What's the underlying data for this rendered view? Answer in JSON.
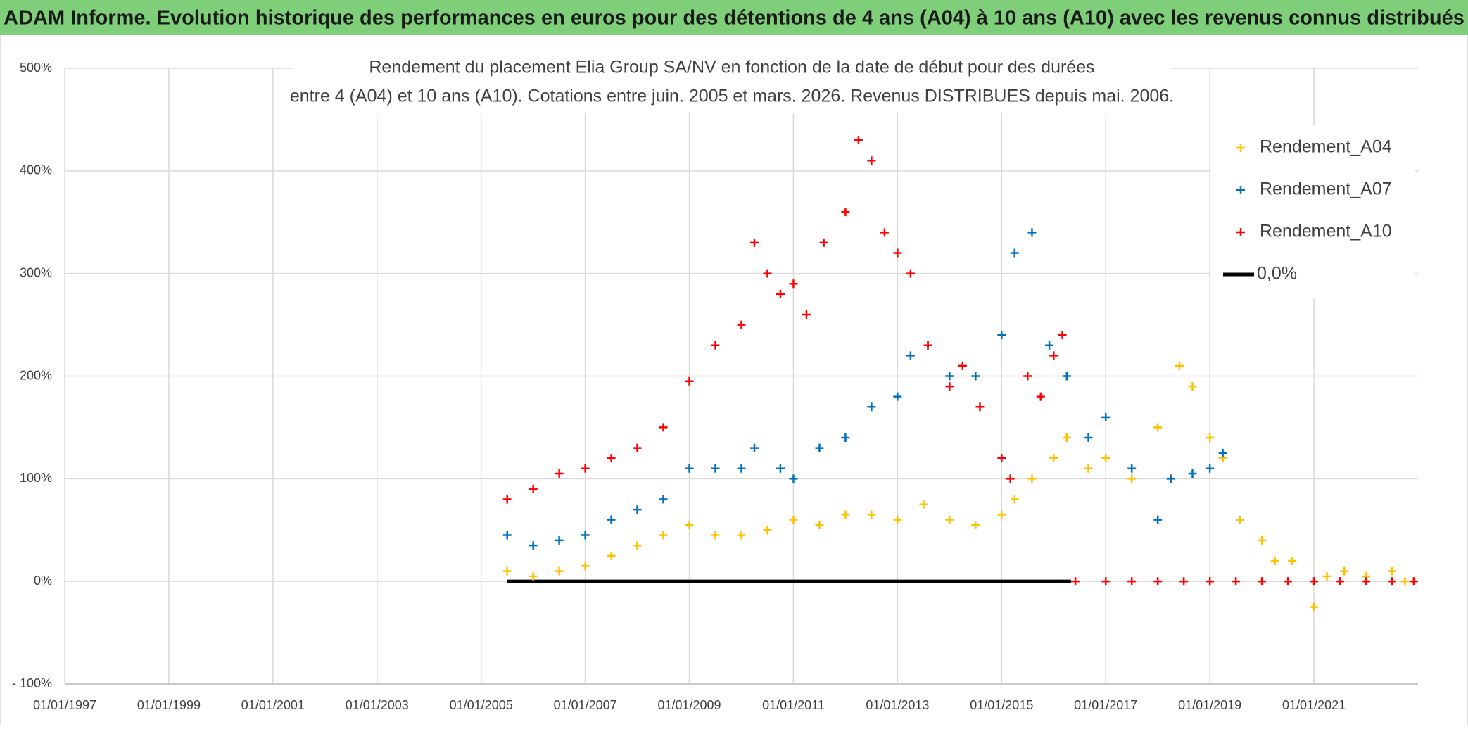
{
  "header": {
    "title": "ADAM Informe. Evolution historique des performances en euros pour des détentions de 4 ans (A04) à 10 ans (A10) avec les revenus connus distribués"
  },
  "chart_data": {
    "type": "scatter",
    "title": [
      "Rendement du placement Elia Group SA/NV en fonction de la date de début pour des durées",
      "entre 4 (A04) et 10 ans (A10). Cotations entre juin. 2005 et mars. 2026. Revenus DISTRIBUES depuis mai. 2006."
    ],
    "xlim": [
      "01/01/1997",
      "01/01/2023"
    ],
    "xticks": [
      "01/01/1997",
      "01/01/1999",
      "01/01/2001",
      "01/01/2003",
      "01/01/2005",
      "01/01/2007",
      "01/01/2009",
      "01/01/2011",
      "01/01/2013",
      "01/01/2015",
      "01/01/2017",
      "01/01/2019",
      "01/01/2021"
    ],
    "ylim": [
      -100,
      500
    ],
    "yticks": [
      {
        "value": -100,
        "label": "- 100%"
      },
      {
        "value": 0,
        "label": "0%"
      },
      {
        "value": 100,
        "label": "100%"
      },
      {
        "value": 200,
        "label": "200%"
      },
      {
        "value": 300,
        "label": "300%"
      },
      {
        "value": 400,
        "label": "400%"
      },
      {
        "value": 500,
        "label": "500%"
      }
    ],
    "grid": true,
    "legend": "right",
    "series": [
      {
        "name": "Rendement_A04",
        "color": "#ffc000",
        "style": "marker",
        "x": [
          "01/07/2005",
          "01/01/2006",
          "01/07/2006",
          "01/01/2007",
          "01/07/2007",
          "01/01/2008",
          "01/07/2008",
          "01/01/2009",
          "01/07/2009",
          "01/01/2010",
          "01/07/2010",
          "01/01/2011",
          "01/07/2011",
          "01/01/2012",
          "01/07/2012",
          "01/01/2013",
          "01/07/2013",
          "01/01/2014",
          "01/07/2014",
          "01/01/2015",
          "01/04/2015",
          "01/08/2015",
          "01/01/2016",
          "01/04/2016",
          "01/09/2016",
          "01/01/2017",
          "01/07/2017",
          "01/01/2018",
          "01/06/2018",
          "01/09/2018",
          "01/01/2019",
          "01/04/2019",
          "01/08/2019",
          "01/01/2020",
          "01/04/2020",
          "01/08/2020",
          "01/01/2021",
          "01/04/2021",
          "01/08/2021",
          "01/01/2022",
          "01/07/2022",
          "01/10/2022"
        ],
        "values": [
          10,
          5,
          10,
          15,
          25,
          35,
          45,
          55,
          45,
          45,
          50,
          60,
          55,
          65,
          65,
          60,
          75,
          60,
          55,
          65,
          80,
          100,
          120,
          140,
          110,
          120,
          100,
          150,
          210,
          190,
          140,
          120,
          60,
          40,
          20,
          20,
          -25,
          5,
          10,
          5,
          10,
          0
        ]
      },
      {
        "name": "Rendement_A07",
        "color": "#0070c0",
        "style": "marker",
        "x": [
          "01/07/2005",
          "01/01/2006",
          "01/07/2006",
          "01/01/2007",
          "01/07/2007",
          "01/01/2008",
          "01/07/2008",
          "01/01/2009",
          "01/07/2009",
          "01/01/2010",
          "01/04/2010",
          "01/10/2010",
          "01/01/2011",
          "01/07/2011",
          "01/01/2012",
          "01/07/2012",
          "01/01/2013",
          "01/04/2013",
          "01/08/2013",
          "01/01/2014",
          "01/07/2014",
          "01/01/2015",
          "01/04/2015",
          "01/08/2015",
          "01/12/2015",
          "01/04/2016",
          "01/09/2016",
          "01/01/2017",
          "01/07/2017",
          "01/01/2018",
          "01/04/2018",
          "01/09/2018",
          "01/01/2019",
          "01/04/2019"
        ],
        "values": [
          45,
          35,
          40,
          45,
          60,
          70,
          80,
          110,
          110,
          110,
          130,
          110,
          100,
          130,
          140,
          170,
          180,
          220,
          230,
          200,
          200,
          240,
          320,
          340,
          230,
          200,
          140,
          160,
          110,
          60,
          100,
          105,
          110,
          125
        ]
      },
      {
        "name": "Rendement_A10",
        "color": "#ff0000",
        "style": "marker",
        "x": [
          "01/07/2005",
          "01/01/2006",
          "01/07/2006",
          "01/01/2007",
          "01/07/2007",
          "01/01/2008",
          "01/07/2008",
          "01/01/2009",
          "01/07/2009",
          "01/01/2010",
          "01/04/2010",
          "01/07/2010",
          "01/10/2010",
          "01/01/2011",
          "01/04/2011",
          "01/08/2011",
          "01/01/2012",
          "01/04/2012",
          "01/07/2012",
          "01/10/2012",
          "01/01/2013",
          "01/04/2013",
          "01/08/2013",
          "01/01/2014",
          "01/04/2014",
          "01/08/2014",
          "01/01/2015",
          "01/03/2015",
          "01/07/2015",
          "01/10/2015",
          "01/01/2016",
          "01/03/2016",
          "01/06/2016",
          "01/01/2017",
          "01/07/2017",
          "01/01/2018",
          "01/07/2018",
          "01/01/2019",
          "01/07/2019",
          "01/01/2020",
          "01/07/2020",
          "01/01/2021",
          "01/07/2021",
          "01/01/2022",
          "01/07/2022",
          "01/12/2022"
        ],
        "values": [
          80,
          90,
          105,
          110,
          120,
          130,
          150,
          195,
          230,
          250,
          330,
          300,
          280,
          290,
          260,
          330,
          360,
          430,
          410,
          340,
          320,
          300,
          230,
          190,
          210,
          170,
          120,
          100,
          200,
          180,
          220,
          240,
          0,
          0,
          0,
          0,
          0,
          0,
          0,
          0,
          0,
          0,
          0,
          0,
          0,
          0
        ]
      },
      {
        "name": "0,0%",
        "color": "#000000",
        "style": "line",
        "x": [
          "01/07/2005",
          "01/05/2016"
        ],
        "values": [
          0,
          0
        ]
      }
    ]
  }
}
